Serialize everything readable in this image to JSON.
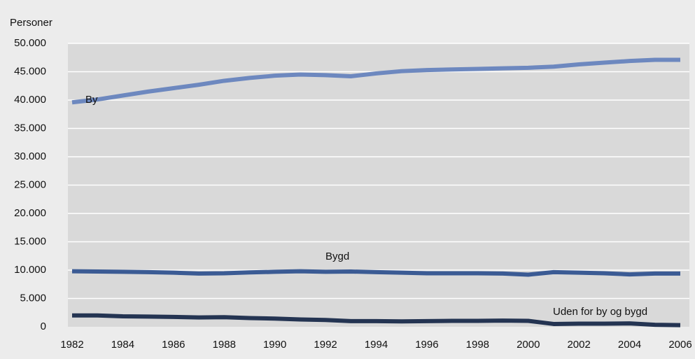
{
  "chart_data": {
    "type": "line",
    "y_label": "Personer",
    "x": [
      1982,
      1983,
      1984,
      1985,
      1986,
      1987,
      1988,
      1989,
      1990,
      1991,
      1992,
      1993,
      1994,
      1995,
      1996,
      1997,
      1998,
      1999,
      2000,
      2001,
      2002,
      2003,
      2004,
      2005,
      2006
    ],
    "series": [
      {
        "name": "By",
        "color": "#6d88bf",
        "values": [
          39600,
          40100,
          40800,
          41500,
          42100,
          42700,
          43400,
          43900,
          44300,
          44500,
          44400,
          44200,
          44700,
          45100,
          45300,
          45400,
          45500,
          45600,
          45700,
          45900,
          46300,
          46600,
          46900,
          47100,
          47100
        ]
      },
      {
        "name": "Bygd",
        "color": "#3b5b94",
        "values": [
          9800,
          9750,
          9700,
          9650,
          9550,
          9400,
          9450,
          9600,
          9700,
          9800,
          9700,
          9750,
          9650,
          9550,
          9450,
          9450,
          9450,
          9400,
          9200,
          9650,
          9550,
          9450,
          9250,
          9400,
          9400
        ]
      },
      {
        "name": "Uden for by og bygd",
        "color": "#243452",
        "values": [
          2000,
          2000,
          1850,
          1800,
          1750,
          1650,
          1700,
          1550,
          1450,
          1300,
          1200,
          1000,
          1000,
          950,
          1000,
          1050,
          1050,
          1100,
          1050,
          500,
          550,
          550,
          600,
          350,
          300
        ]
      }
    ],
    "xlim": [
      1982,
      2006
    ],
    "xticks": [
      1982,
      1984,
      1986,
      1988,
      1990,
      1992,
      1994,
      1996,
      1998,
      2000,
      2002,
      2004,
      2006
    ],
    "ylim": [
      0,
      50000
    ],
    "yticks": [
      0,
      {
        "value": 5000,
        "label": "5.000"
      },
      {
        "value": 10000,
        "label": "10.000"
      },
      {
        "value": 15000,
        "label": "15.000"
      },
      {
        "value": 20000,
        "label": "20.000"
      },
      {
        "value": 25000,
        "label": "25.000"
      },
      {
        "value": 30000,
        "label": "30.000"
      },
      {
        "value": 35000,
        "label": "35.000"
      },
      {
        "value": 40000,
        "label": "40.000"
      },
      {
        "value": 45000,
        "label": "45.000"
      },
      {
        "value": 50000,
        "label": "50.000"
      }
    ],
    "grid": true
  }
}
